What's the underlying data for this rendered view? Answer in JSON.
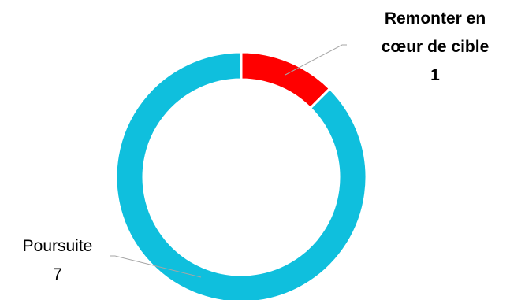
{
  "chart_data": {
    "type": "pie",
    "variant": "donut",
    "categories": [
      "Remonter en cœur de cible",
      "Poursuite"
    ],
    "values": [
      1,
      7
    ],
    "colors": [
      "#ff0000",
      "#0fbfdd"
    ],
    "data_labels": [
      {
        "lines": [
          "Remonter en",
          "cœur de cible"
        ],
        "value": "1"
      },
      {
        "lines": [
          "Poursuite"
        ],
        "value": "7"
      }
    ],
    "legend": "none"
  }
}
